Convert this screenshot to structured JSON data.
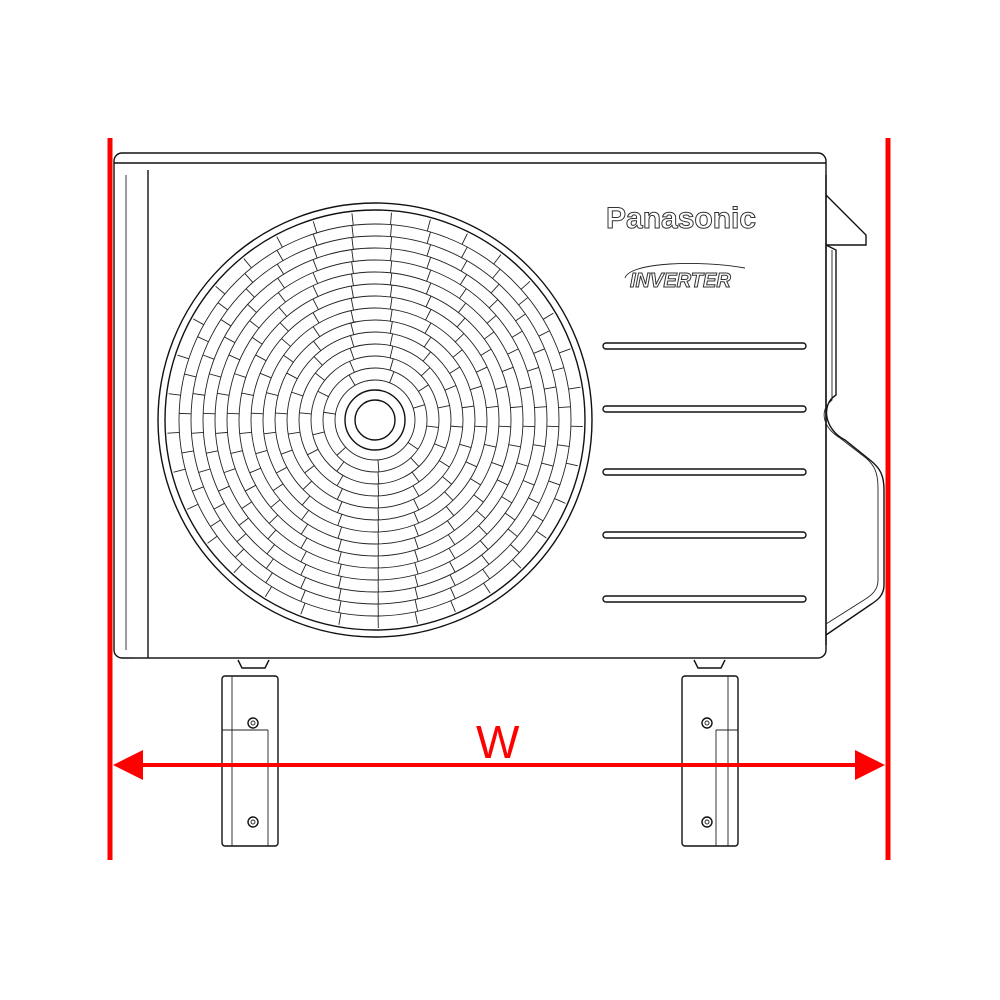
{
  "drawing": {
    "brand": "Panasonic",
    "sub_brand": "INVERTER",
    "dimension_label": "W",
    "dimension_color": "#ff0000",
    "line_color": "#111111"
  }
}
